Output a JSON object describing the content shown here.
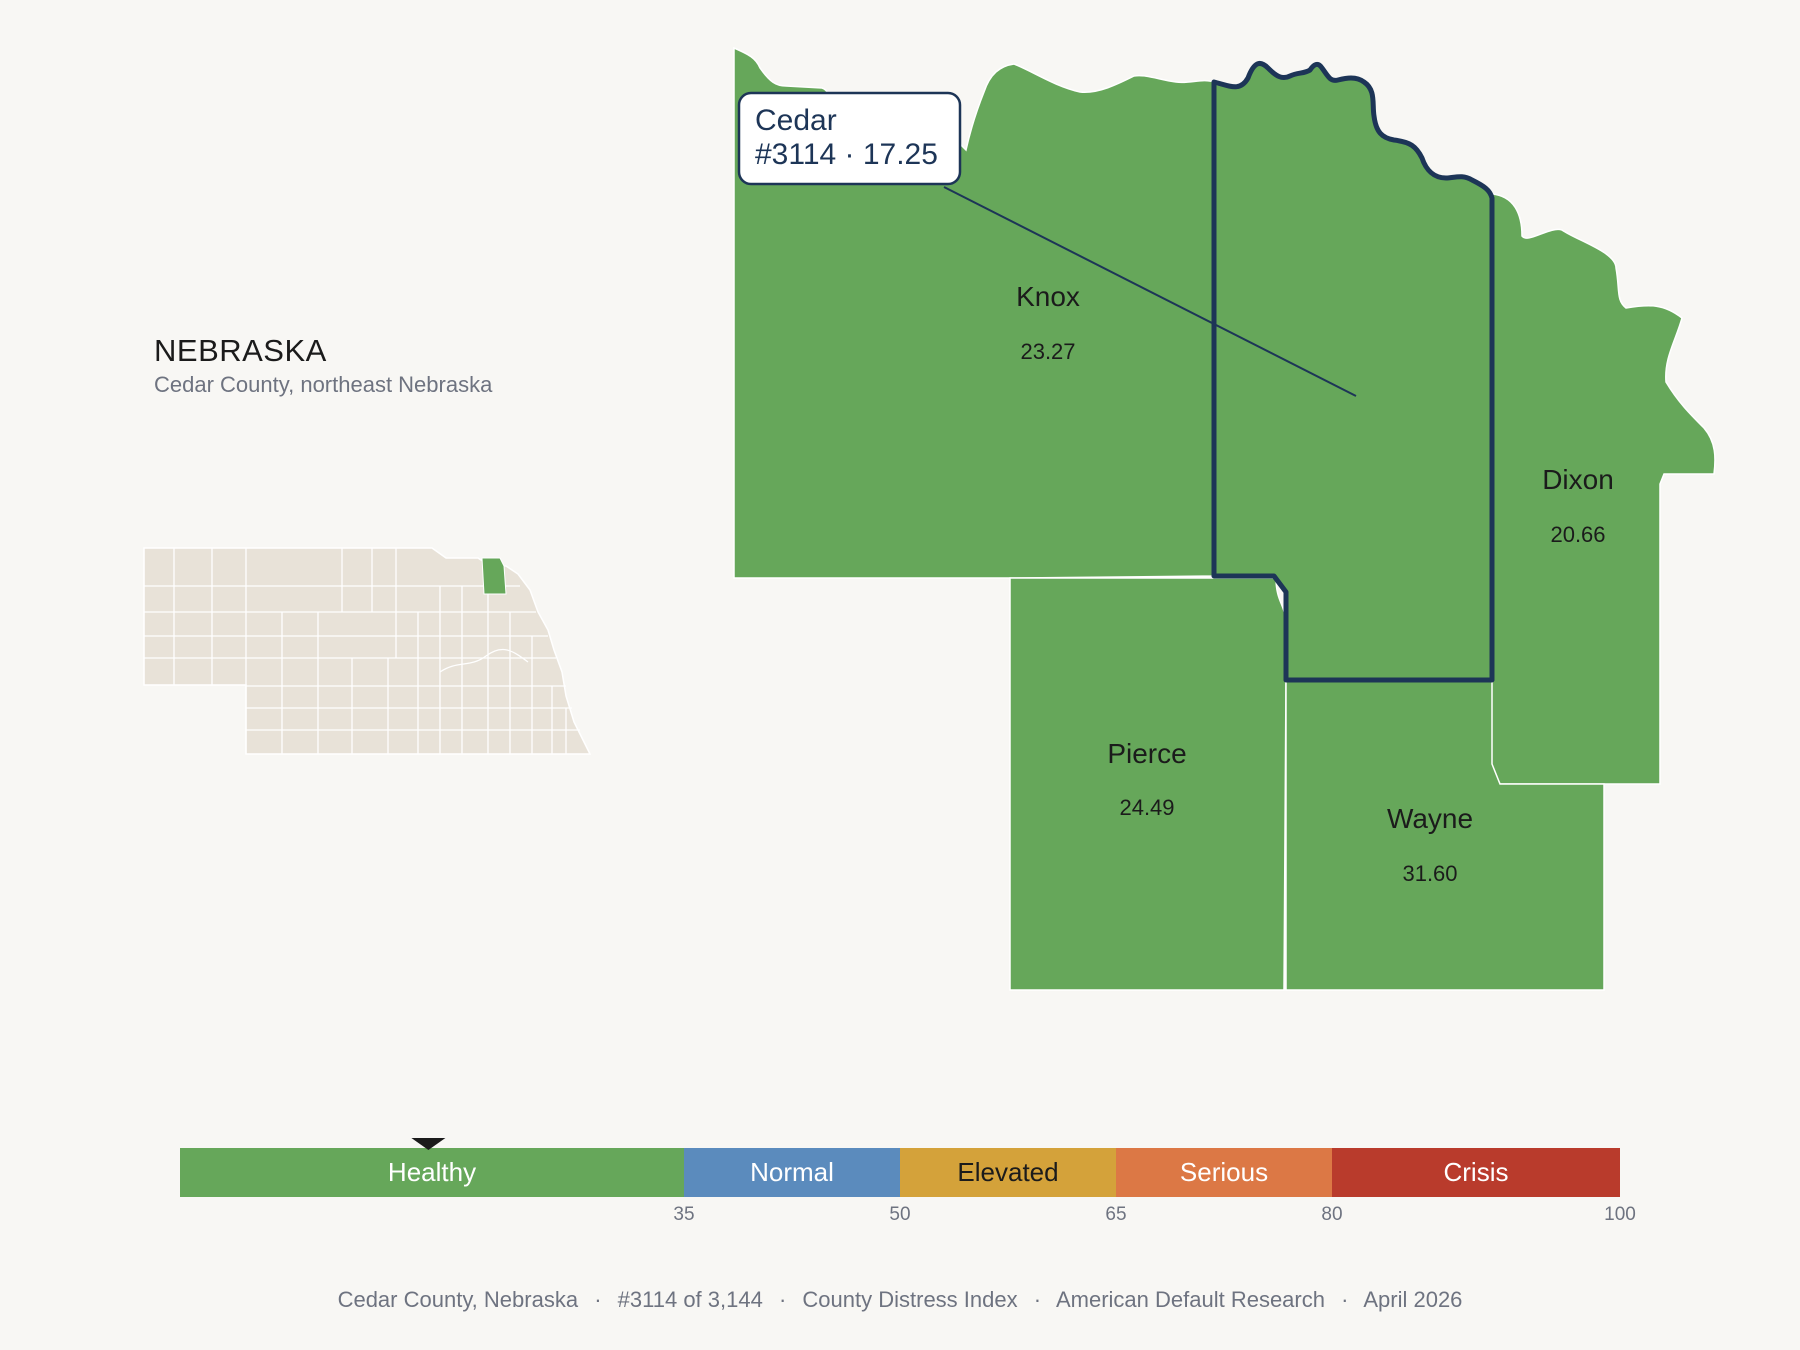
{
  "colors": {
    "background": "#f8f7f4",
    "county_fill": "#66a75a",
    "county_border": "#ffffff",
    "highlight": "#1d3557",
    "inset_fill": "#e8e2d8",
    "inset_border": "#ffffff",
    "inset_highlight": "#66a75a",
    "muted_text": "#6e7380",
    "dark_text": "#1b1b1b"
  },
  "inset": {
    "state": "NEBRASKA",
    "subtitle": "Cedar County, northeast Nebraska"
  },
  "focus_county": {
    "name": "Cedar",
    "rank_value": "#3114 · 17.25"
  },
  "counties": [
    {
      "name": "Knox",
      "value": "23.27"
    },
    {
      "name": "Dixon",
      "value": "20.66"
    },
    {
      "name": "Pierce",
      "value": "24.49"
    },
    {
      "name": "Wayne",
      "value": "31.60"
    }
  ],
  "legend": {
    "segments": [
      {
        "label": "Healthy",
        "min": 0,
        "max": 35,
        "color": "#66a75a",
        "text_color": "#ffffff"
      },
      {
        "label": "Normal",
        "min": 35,
        "max": 50,
        "color": "#5b8bbd",
        "text_color": "#ffffff"
      },
      {
        "label": "Elevated",
        "min": 50,
        "max": 65,
        "color": "#d4a23a",
        "text_color": "#1b1b1b"
      },
      {
        "label": "Serious",
        "min": 65,
        "max": 80,
        "color": "#dc7845",
        "text_color": "#ffffff"
      },
      {
        "label": "Crisis",
        "min": 80,
        "max": 100,
        "color": "#b93b2c",
        "text_color": "#ffffff"
      }
    ],
    "ticks": [
      "35",
      "50",
      "65",
      "80",
      "100"
    ],
    "marker_value": 17.25
  },
  "footer": {
    "county": "Cedar County, Nebraska",
    "rank": "#3114 of 3,144",
    "index": "County Distress Index",
    "source": "American Default Research",
    "date": "April 2026",
    "separator": "·"
  }
}
